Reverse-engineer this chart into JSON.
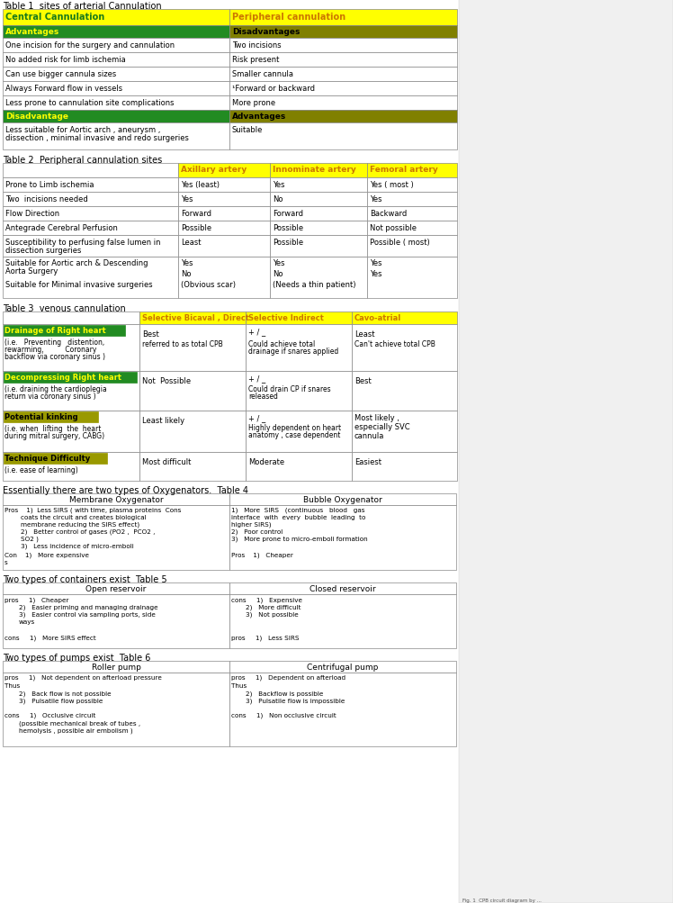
{
  "t1_title": "Table 1  sites of arterial Cannulation",
  "t2_title": "Table 2  Peripheral cannulation sites",
  "t3_title": "Table 3  venous cannulation",
  "t4_title": "Essentially there are two types of Oxygenators.  Table 4",
  "t5_title": "Two types of containers exist  Table 5",
  "t6_title": "Two types of pumps exist  Table 6",
  "yellow_bg": "#FFFF00",
  "green_bg": "#228B22",
  "olive_bg": "#808000",
  "white_bg": "#FFFFFF",
  "green_text": "#228B22",
  "orange_text": "#FFA500",
  "yellow_text": "#FFFF00",
  "black_text": "#000000",
  "border": "#999999"
}
